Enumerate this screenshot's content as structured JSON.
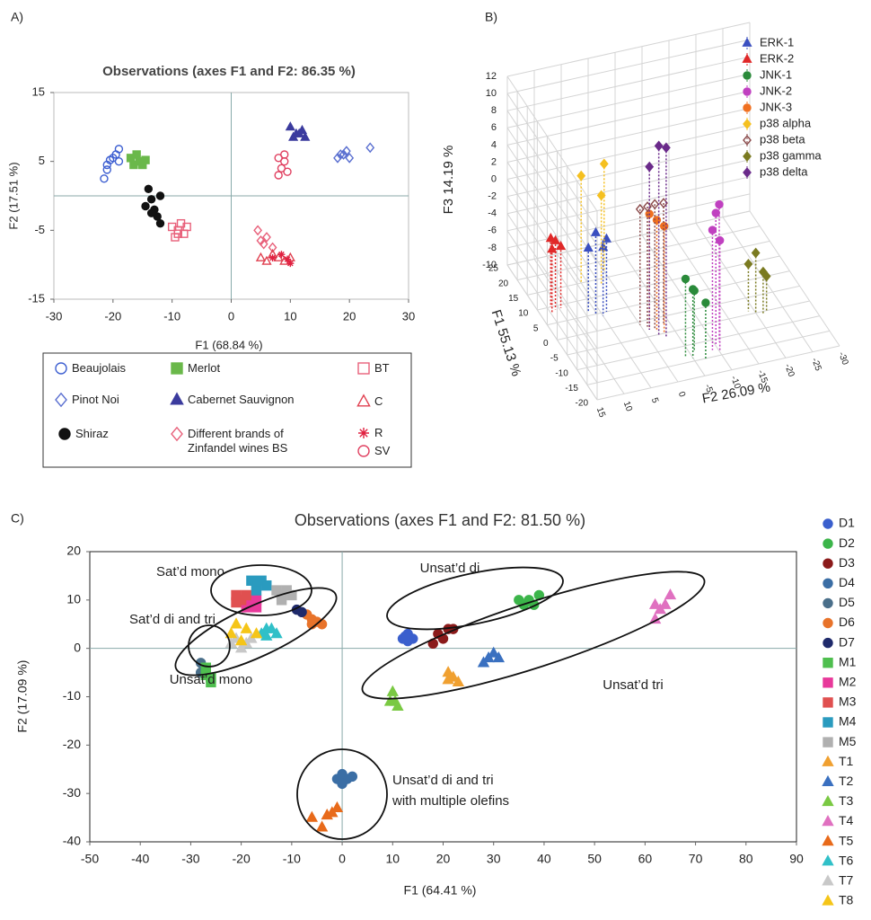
{
  "chart_data": [
    {
      "type": "scatter",
      "panel_label": "A)",
      "title": "Observations (axes F1 and F2: 86.35 %)",
      "x_label": "F1 (68.84 %)",
      "y_label": "F2 (17.51 %)",
      "xlim": [
        -30,
        30
      ],
      "xticks": [
        -30,
        -20,
        -10,
        0,
        10,
        20,
        30
      ],
      "ylim": [
        -15,
        15
      ],
      "yticks": [
        -15,
        -5,
        5,
        15
      ],
      "series": [
        {
          "name": "Beaujolais",
          "color": "#3d5fd1",
          "marker": "circle",
          "filled": false,
          "x": [
            -21,
            -20.5,
            -20,
            -19.5,
            -19,
            -21.5,
            -19,
            -21
          ],
          "y": [
            4.5,
            5.2,
            5.5,
            6,
            6.8,
            2.5,
            5,
            3.8
          ]
        },
        {
          "name": "Pinot Noi",
          "color": "#5a6fd0",
          "marker": "diamond",
          "filled": false,
          "x": [
            18,
            19,
            19.5,
            20,
            18.5,
            23.5
          ],
          "y": [
            5.5,
            6,
            6.5,
            5.5,
            6,
            7
          ]
        },
        {
          "name": "Shiraz",
          "color": "#111111",
          "marker": "circle",
          "filled": true,
          "x": [
            -14,
            -13.5,
            -14.5,
            -13,
            -12.5,
            -12,
            -13.5,
            -12
          ],
          "y": [
            1,
            -0.5,
            -1.5,
            -2,
            -3,
            -4,
            -2.5,
            0
          ]
        },
        {
          "name": "Merlot",
          "color": "#6ab84a",
          "marker": "square",
          "filled": true,
          "x": [
            -17,
            -16,
            -15.5,
            -15,
            -16.5,
            -14.5
          ],
          "y": [
            5.5,
            6,
            5,
            4.5,
            4.5,
            5.2
          ]
        },
        {
          "name": "Cabernet Sauvignon",
          "color": "#3b3b9e",
          "marker": "triangle",
          "filled": true,
          "x": [
            10,
            11,
            12,
            10.5,
            12.5,
            11.5
          ],
          "y": [
            10,
            9,
            9.5,
            8.5,
            8.5,
            9
          ]
        },
        {
          "name": "Different brands of Zinfandel wines BS",
          "color": "#e8607a",
          "marker": "diamond",
          "filled": false,
          "x": [
            4.5,
            5,
            5.5,
            6,
            7
          ],
          "y": [
            -5,
            -6.5,
            -7,
            -6,
            -7.5
          ]
        },
        {
          "name": "BT",
          "color": "#e8607a",
          "marker": "square",
          "filled": false,
          "x": [
            -10,
            -9,
            -9.5,
            -8,
            -8.5,
            -7.5,
            -9
          ],
          "y": [
            -4.5,
            -5,
            -6,
            -5.5,
            -4,
            -4.5,
            -5.5
          ]
        },
        {
          "name": "C",
          "color": "#e04050",
          "marker": "triangle",
          "filled": false,
          "x": [
            5,
            6,
            7,
            8,
            9,
            10
          ],
          "y": [
            -9,
            -9.5,
            -8.5,
            -9,
            -9.5,
            -9
          ]
        },
        {
          "name": "R",
          "color": "#e02040",
          "marker": "asterisk",
          "filled": false,
          "x": [
            7,
            8.5,
            9.5,
            10
          ],
          "y": [
            -9,
            -8.5,
            -9.2,
            -9.8
          ]
        },
        {
          "name": "SV",
          "color": "#e04060",
          "marker": "circle",
          "filled": false,
          "x": [
            8,
            9,
            8.5,
            9.5,
            8,
            9
          ],
          "y": [
            5.5,
            6,
            4,
            3.5,
            3,
            5
          ]
        }
      ]
    },
    {
      "type": "scatter3d",
      "panel_label": "B)",
      "x_label": "F2 26.09 %",
      "y_label": "F1 55.13 %",
      "z_label": "F3 14.19 %",
      "xlim": [
        -30,
        15
      ],
      "xticks": [
        -30,
        -25,
        -20,
        -15,
        -10,
        -5,
        0,
        5,
        10,
        15
      ],
      "ylim": [
        -20,
        25
      ],
      "yticks": [
        -20,
        -15,
        -10,
        -5,
        0,
        5,
        10,
        15,
        20,
        25
      ],
      "zlim": [
        -10,
        12
      ],
      "zticks": [
        -10,
        -8,
        -6,
        -4,
        -2,
        0,
        2,
        4,
        6,
        8,
        10,
        12
      ],
      "series": [
        {
          "name": "ERK-1",
          "color": "#3a4fc0",
          "marker": "triangle",
          "filled": true,
          "x": [
            6,
            5,
            7,
            4
          ],
          "y": [
            5,
            4,
            6,
            5
          ],
          "z": [
            -0.5,
            -2,
            -2.5,
            -1.5
          ]
        },
        {
          "name": "ERK-2",
          "color": "#e02828",
          "marker": "triangle",
          "filled": true,
          "x": [
            12,
            13,
            12.5,
            11
          ],
          "y": [
            9,
            8,
            10,
            9
          ],
          "z": [
            -2,
            -2.5,
            -2,
            -2.8
          ]
        },
        {
          "name": "JNK-1",
          "color": "#2a8a3a",
          "marker": "circle",
          "filled": true,
          "x": [
            -5,
            -6,
            -7,
            -4
          ],
          "y": [
            -14,
            -12,
            -15,
            -13
          ],
          "z": [
            -2,
            -3,
            -3.5,
            -1
          ]
        },
        {
          "name": "JNK-2",
          "color": "#c040c0",
          "marker": "circle",
          "filled": true,
          "x": [
            -10,
            -11,
            -9,
            -10
          ],
          "y": [
            -12,
            -11,
            -13,
            -14
          ],
          "z": [
            5.5,
            6,
            4,
            3
          ]
        },
        {
          "name": "JNK-3",
          "color": "#f07020",
          "marker": "circle",
          "filled": true,
          "x": [
            -2,
            -3,
            -1
          ],
          "y": [
            -4,
            -5,
            -3
          ],
          "z": [
            3,
            2.5,
            3.5
          ]
        },
        {
          "name": "p38 alpha",
          "color": "#f5c020",
          "marker": "diamond",
          "filled": true,
          "x": [
            5,
            0,
            2
          ],
          "y": [
            15,
            17,
            13
          ],
          "z": [
            2.5,
            2.5,
            0.5
          ]
        },
        {
          "name": "p38 beta",
          "color": "#8a4a4a",
          "marker": "diamond",
          "filled": false,
          "x": [
            -1,
            -2,
            0,
            -4
          ],
          "y": [
            -2,
            -3,
            -1,
            -2
          ],
          "z": [
            4,
            4.5,
            3.5,
            4
          ]
        },
        {
          "name": "p38 gamma",
          "color": "#7a7a20",
          "marker": "diamond",
          "filled": true,
          "x": [
            -20,
            -21,
            -19,
            -22
          ],
          "y": [
            -5,
            -6,
            -4,
            -5
          ],
          "z": [
            -3,
            -5,
            -4.5,
            -6
          ]
        },
        {
          "name": "p38 delta",
          "color": "#6a2a8a",
          "marker": "diamond",
          "filled": true,
          "x": [
            -2,
            -3,
            -1
          ],
          "y": [
            -5,
            -6,
            -3
          ],
          "z": [
            12,
            12,
            9
          ]
        }
      ]
    },
    {
      "type": "scatter",
      "panel_label": "C)",
      "title": "Observations (axes F1 and F2: 81.50 %)",
      "x_label": "F1 (64.41 %)",
      "y_label": "F2 (17.09 %)",
      "xlim": [
        -50,
        90
      ],
      "xticks": [
        -50,
        -40,
        -30,
        -20,
        -10,
        0,
        10,
        20,
        30,
        40,
        50,
        60,
        70,
        80,
        90
      ],
      "ylim": [
        -40,
        20
      ],
      "yticks": [
        -40,
        -30,
        -20,
        -10,
        0,
        10,
        20
      ],
      "annotations": [
        {
          "lines": [
            "Sat’d mono"
          ]
        },
        {
          "lines": [
            "Sat’d di and tri"
          ]
        },
        {
          "lines": [
            "Unsat’d mono"
          ]
        },
        {
          "lines": [
            "Unsat’d di"
          ]
        },
        {
          "lines": [
            "Unsat’d tri"
          ]
        },
        {
          "lines": [
            "Unsat’d di and tri",
            "with multiple olefins"
          ]
        }
      ],
      "series": [
        {
          "name": "D1",
          "color": "#3a5fcd",
          "marker": "circle",
          "filled": true,
          "x": [
            12,
            13,
            14,
            13,
            12.5
          ],
          "y": [
            2,
            3,
            2,
            1.5,
            2.5
          ]
        },
        {
          "name": "D2",
          "color": "#3cb54a",
          "marker": "circle",
          "filled": true,
          "x": [
            36,
            37,
            39,
            38,
            35
          ],
          "y": [
            9,
            10,
            11,
            9,
            10
          ]
        },
        {
          "name": "D3",
          "color": "#8b1a1a",
          "marker": "circle",
          "filled": true,
          "x": [
            18,
            19,
            20,
            21,
            22
          ],
          "y": [
            1,
            3,
            2,
            4,
            4
          ]
        },
        {
          "name": "D4",
          "color": "#3b6ea5",
          "marker": "circle",
          "filled": true,
          "x": [
            -1,
            0,
            1,
            2,
            0
          ],
          "y": [
            -27,
            -26,
            -27,
            -26.5,
            -28
          ]
        },
        {
          "name": "D5",
          "color": "#4a6f8a",
          "marker": "circle",
          "filled": true,
          "x": [
            -28,
            -27,
            -28
          ],
          "y": [
            -3,
            -4,
            -5
          ]
        },
        {
          "name": "D6",
          "color": "#e8732a",
          "marker": "circle",
          "filled": true,
          "x": [
            -7,
            -6,
            -5,
            -4,
            -6
          ],
          "y": [
            7,
            6,
            5.5,
            5,
            5
          ]
        },
        {
          "name": "D7",
          "color": "#1f2a6b",
          "marker": "circle",
          "filled": true,
          "x": [
            -9,
            -8
          ],
          "y": [
            8,
            7.5
          ]
        },
        {
          "name": "M1",
          "color": "#4fbf4f",
          "marker": "square",
          "filled": true,
          "x": [
            -27,
            -26,
            -27,
            -26
          ],
          "y": [
            -4,
            -6,
            -5.5,
            -7
          ]
        },
        {
          "name": "M2",
          "color": "#e8399a",
          "marker": "square",
          "filled": true,
          "x": [
            -19,
            -18,
            -17,
            -19,
            -17
          ],
          "y": [
            10,
            9,
            10,
            8.5,
            8.5
          ]
        },
        {
          "name": "M3",
          "color": "#e05050",
          "marker": "square",
          "filled": true,
          "x": [
            -21,
            -20,
            -19,
            -21
          ],
          "y": [
            11,
            10,
            11,
            9.5
          ]
        },
        {
          "name": "M4",
          "color": "#2a9bbf",
          "marker": "square",
          "filled": true,
          "x": [
            -18,
            -17,
            -16,
            -15,
            -17
          ],
          "y": [
            14,
            13,
            14,
            13,
            12
          ]
        },
        {
          "name": "M5",
          "color": "#b0b0b0",
          "marker": "square",
          "filled": true,
          "x": [
            -13,
            -12,
            -11,
            -10,
            -12
          ],
          "y": [
            12,
            11,
            12,
            11,
            10
          ]
        },
        {
          "name": "T1",
          "color": "#f0a030",
          "marker": "triangle",
          "filled": true,
          "x": [
            21,
            22,
            23,
            21
          ],
          "y": [
            -5,
            -6,
            -7,
            -6.5
          ]
        },
        {
          "name": "T2",
          "color": "#3a70c0",
          "marker": "triangle",
          "filled": true,
          "x": [
            29,
            30,
            31,
            28
          ],
          "y": [
            -2,
            -1,
            -2,
            -3
          ]
        },
        {
          "name": "T3",
          "color": "#7ac943",
          "marker": "triangle",
          "filled": true,
          "x": [
            10,
            10.5,
            11,
            9.5
          ],
          "y": [
            -9,
            -11,
            -12,
            -11
          ]
        },
        {
          "name": "T4",
          "color": "#e070c0",
          "marker": "triangle",
          "filled": true,
          "x": [
            62,
            63,
            62,
            64,
            65
          ],
          "y": [
            6,
            8,
            9,
            9,
            11
          ]
        },
        {
          "name": "T5",
          "color": "#e86a1a",
          "marker": "triangle",
          "filled": true,
          "x": [
            -6,
            -4,
            -2,
            -1,
            -3
          ],
          "y": [
            -35,
            -37,
            -34,
            -33,
            -34.5
          ]
        },
        {
          "name": "T6",
          "color": "#30c0c8",
          "marker": "triangle",
          "filled": true,
          "x": [
            -16,
            -15,
            -14,
            -13,
            -15
          ],
          "y": [
            3,
            4,
            4,
            3,
            2.5
          ]
        },
        {
          "name": "T7",
          "color": "#c8c8c8",
          "marker": "triangle",
          "filled": true,
          "x": [
            -22,
            -21,
            -20,
            -19,
            -18
          ],
          "y": [
            1,
            2,
            0,
            1,
            2
          ]
        },
        {
          "name": "T8",
          "color": "#f5c518",
          "marker": "triangle",
          "filled": true,
          "x": [
            -22,
            -21,
            -19,
            -17,
            -20
          ],
          "y": [
            3,
            5,
            4,
            3,
            1.5
          ]
        }
      ]
    }
  ]
}
